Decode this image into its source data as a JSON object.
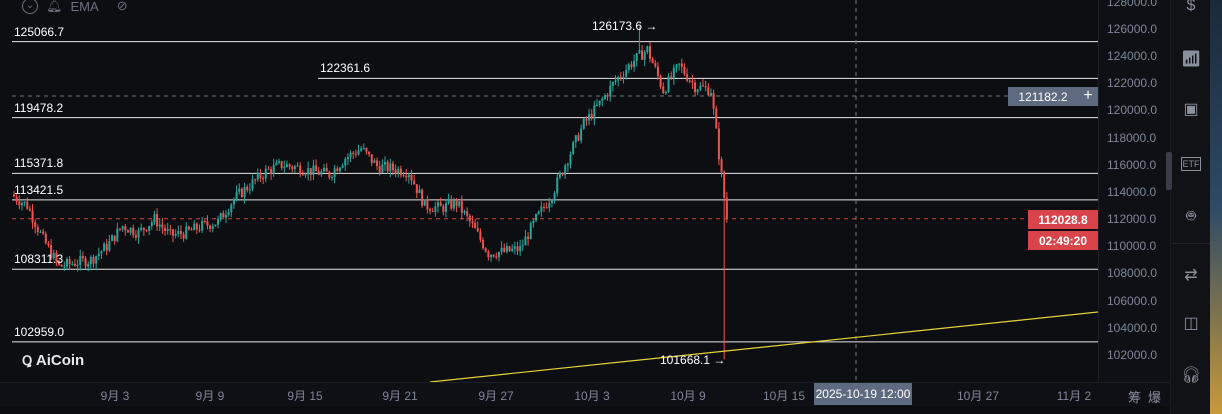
{
  "toolbar": {
    "indicator": "EMA"
  },
  "levels": [
    {
      "label": "125066.7",
      "price": 125066.7,
      "start": "left"
    },
    {
      "label": "122361.6",
      "price": 122361.6,
      "start": "mid"
    },
    {
      "label": "119478.2",
      "price": 119478.2,
      "start": "left"
    },
    {
      "label": "115371.8",
      "price": 115371.8,
      "start": "left"
    },
    {
      "label": "113421.5",
      "price": 113421.5,
      "start": "left"
    },
    {
      "label": "108311.3",
      "price": 108311.3,
      "start": "left"
    },
    {
      "label": "102959.0",
      "price": 102959.0,
      "start": "left"
    }
  ],
  "annotations": {
    "high": "126173.6 →",
    "low": "101668.1 →"
  },
  "price_axis": {
    "ticks": [
      "128000.0",
      "126000.0",
      "124000.0",
      "122000.0",
      "120000.0",
      "118000.0",
      "116000.0",
      "114000.0",
      "112000.0",
      "110000.0",
      "108000.0",
      "106000.0",
      "104000.0",
      "102000.0"
    ],
    "crosshair_price": "121182.2",
    "current_price": "112028.8",
    "countdown": "02:49:20"
  },
  "time_axis": {
    "ticks": [
      "9月 3",
      "9月 9",
      "9月 15",
      "9月 21",
      "9月 27",
      "10月 3",
      "10月 9",
      "10月 15",
      "10月 27",
      "11月 2"
    ],
    "crosshair_time": "2025-10-19 12:00",
    "right_labels": [
      "筹",
      "爆"
    ]
  },
  "brand": "AiCoin",
  "colors": {
    "up": "#26a69a",
    "down": "#ef5350",
    "trend": "#e6d23a",
    "tag": "#d9434a",
    "cross": "#5d6a80"
  },
  "chart_data": {
    "type": "candlestick",
    "start": "8月28",
    "daily_close": [
      113000,
      110500,
      108500,
      108800,
      109000,
      110000,
      111500,
      111000,
      112000,
      110800,
      111000,
      111500,
      111800,
      113500,
      114500,
      115500,
      116000,
      115800,
      115500,
      115300,
      116500,
      117200,
      115900,
      115700,
      115500,
      113000,
      112800,
      113200,
      111500,
      109500,
      109600,
      109800,
      112000,
      113800,
      116500,
      119000,
      120500,
      122200,
      123500,
      124500,
      121500,
      123300,
      121800,
      121500,
      112028.8
    ],
    "crash_low": 101668.1,
    "high": 126173.6
  }
}
